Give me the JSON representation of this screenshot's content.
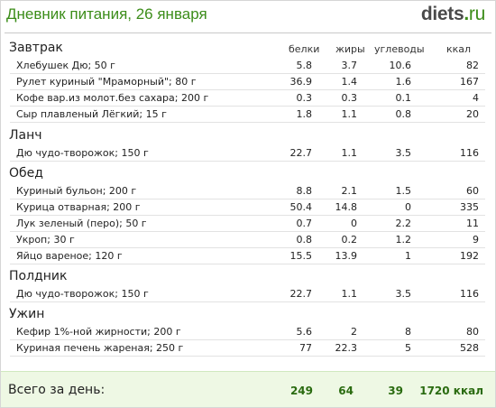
{
  "header": {
    "title": "Дневник питания, 26 января",
    "logo_main": "diets",
    "logo_dot": ".",
    "logo_suffix": "ru"
  },
  "columns": {
    "protein": "белки",
    "fat": "жиры",
    "carbs": "углеводы",
    "kcal": "ккал"
  },
  "meals": [
    {
      "name": "Завтрак",
      "items": [
        {
          "name": "Хлебушек Дю; 50 г",
          "protein": "5.8",
          "fat": "3.7",
          "carbs": "10.6",
          "kcal": "82"
        },
        {
          "name": "Рулет куриный \"Мраморный\"; 80 г",
          "protein": "36.9",
          "fat": "1.4",
          "carbs": "1.6",
          "kcal": "167"
        },
        {
          "name": "Кофе вар.из молот.без сахара; 200 г",
          "protein": "0.3",
          "fat": "0.3",
          "carbs": "0.1",
          "kcal": "4"
        },
        {
          "name": "Сыр плавленый Лёгкий; 15 г",
          "protein": "1.8",
          "fat": "1.1",
          "carbs": "0.8",
          "kcal": "20"
        }
      ]
    },
    {
      "name": "Ланч",
      "items": [
        {
          "name": "Дю чудо-творожок; 150 г",
          "protein": "22.7",
          "fat": "1.1",
          "carbs": "3.5",
          "kcal": "116"
        }
      ]
    },
    {
      "name": "Обед",
      "items": [
        {
          "name": "Куриный бульон; 200 г",
          "protein": "8.8",
          "fat": "2.1",
          "carbs": "1.5",
          "kcal": "60"
        },
        {
          "name": "Курица отварная; 200 г",
          "protein": "50.4",
          "fat": "14.8",
          "carbs": "0",
          "kcal": "335"
        },
        {
          "name": "Лук зеленый (перо); 50 г",
          "protein": "0.7",
          "fat": "0",
          "carbs": "2.2",
          "kcal": "11"
        },
        {
          "name": "Укроп; 30 г",
          "protein": "0.8",
          "fat": "0.2",
          "carbs": "1.2",
          "kcal": "9"
        },
        {
          "name": "Яйцо вареное; 120 г",
          "protein": "15.5",
          "fat": "13.9",
          "carbs": "1",
          "kcal": "192"
        }
      ]
    },
    {
      "name": "Полдник",
      "items": [
        {
          "name": "Дю чудо-творожок; 150 г",
          "protein": "22.7",
          "fat": "1.1",
          "carbs": "3.5",
          "kcal": "116"
        }
      ]
    },
    {
      "name": "Ужин",
      "items": [
        {
          "name": "Кефир 1%-ной жирности; 200 г",
          "protein": "5.6",
          "fat": "2",
          "carbs": "8",
          "kcal": "80"
        },
        {
          "name": "Куриная печень жареная; 250 г",
          "protein": "77",
          "fat": "22.3",
          "carbs": "5",
          "kcal": "528"
        }
      ]
    }
  ],
  "totals": {
    "label": "Всего за день:",
    "protein": "249",
    "fat": "64",
    "carbs": "39",
    "kcal": "1720 ккал"
  },
  "colors": {
    "accent": "#3c8d1a",
    "totals_bg": "#eef8e4"
  }
}
